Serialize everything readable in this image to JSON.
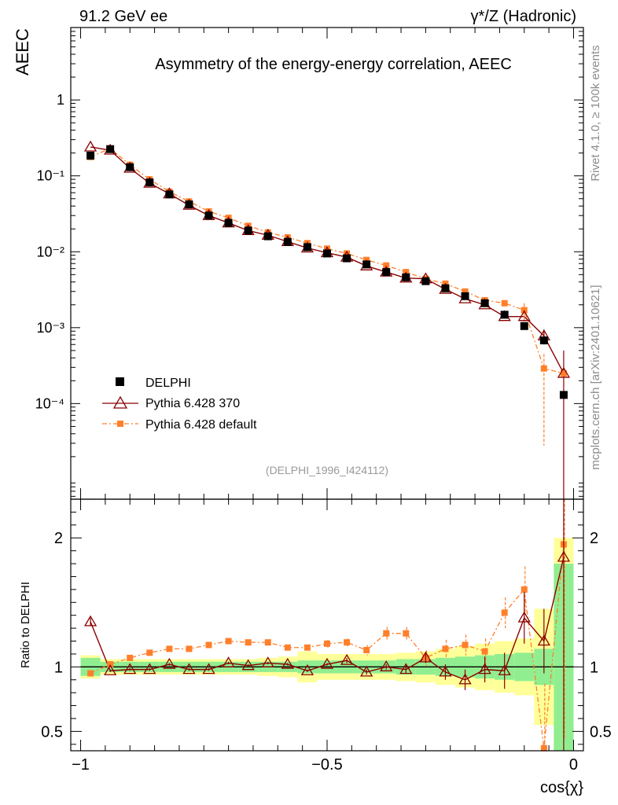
{
  "header": {
    "left": "91.2 GeV ee",
    "right": "γ*/Z (Hadronic)"
  },
  "side_labels": {
    "rivet": "Rivet 4.1.0, ≥ 100k events",
    "mcplots": "mcplots.cern.ch [arXiv:2401.10621]"
  },
  "colors": {
    "data": "#000000",
    "pythia370": "#8b0000",
    "pythiadefault": "#ff7f2a",
    "band_green": "#90ee90",
    "band_yellow": "#ffff99"
  },
  "chart_data": [
    {
      "type": "line",
      "title": "Asymmetry of the energy-energy correlation, AEEC",
      "ylabel": "AEEC",
      "xlabel": "cos{χ}",
      "yscale": "log",
      "xlim": [
        -1.02,
        0.02
      ],
      "ylim": [
        5.5e-06,
        9
      ],
      "analysis_tag": "(DELPHI_1996_I424112)",
      "y_ticks": [
        {
          "v": 1,
          "label": "1"
        },
        {
          "v": 0.1,
          "label": "10⁻¹"
        },
        {
          "v": 0.01,
          "label": "10⁻²"
        },
        {
          "v": 0.001,
          "label": "10⁻³"
        },
        {
          "v": 0.0001,
          "label": "10⁻⁴"
        }
      ],
      "legend": [
        "DELPHI",
        "Pythia 6.428 370",
        "Pythia 6.428 default"
      ],
      "x": [
        -0.98,
        -0.94,
        -0.9,
        -0.86,
        -0.82,
        -0.78,
        -0.74,
        -0.7,
        -0.66,
        -0.62,
        -0.58,
        -0.54,
        -0.5,
        -0.46,
        -0.42,
        -0.38,
        -0.34,
        -0.3,
        -0.26,
        -0.22,
        -0.18,
        -0.14,
        -0.1,
        -0.06,
        -0.02
      ],
      "series": [
        {
          "name": "DELPHI",
          "values": [
            0.185,
            0.225,
            0.13,
            0.082,
            0.057,
            0.042,
            0.03,
            0.024,
            0.019,
            0.016,
            0.0135,
            0.0115,
            0.0095,
            0.0082,
            0.0068,
            0.0054,
            0.0046,
            0.0041,
            0.0033,
            0.0026,
            0.0021,
            0.00148,
            0.00105,
            0.00068,
            0.00013
          ]
        },
        {
          "name": "Pythia 6.428 370",
          "values": [
            0.24,
            0.218,
            0.126,
            0.08,
            0.058,
            0.041,
            0.03,
            0.024,
            0.019,
            0.0165,
            0.0136,
            0.0112,
            0.0097,
            0.0085,
            0.0065,
            0.0054,
            0.0045,
            0.0044,
            0.0032,
            0.0024,
            0.002,
            0.0014,
            0.0014,
            0.00078,
            0.00025
          ]
        },
        {
          "name": "Pythia 6.428 default",
          "values": [
            0.177,
            0.23,
            0.14,
            0.09,
            0.062,
            0.046,
            0.034,
            0.028,
            0.022,
            0.018,
            0.0155,
            0.013,
            0.011,
            0.0095,
            0.0078,
            0.0066,
            0.0054,
            0.0044,
            0.0038,
            0.003,
            0.0023,
            0.0021,
            0.0017,
            0.00029,
            0.00025
          ]
        }
      ]
    },
    {
      "type": "line",
      "ylabel": "Ratio to DELPHI",
      "xlabel": "cos{χ}",
      "xlim": [
        -1.02,
        0.02
      ],
      "ylim": [
        0.35,
        2.3
      ],
      "x_ticks": [
        {
          "v": -1,
          "label": "−1"
        },
        {
          "v": -0.5,
          "label": "−0.5"
        },
        {
          "v": 0,
          "label": "0"
        }
      ],
      "y_ticks": [
        {
          "v": 0.5,
          "label": "0.5"
        },
        {
          "v": 1,
          "label": "1"
        },
        {
          "v": 2,
          "label": "2"
        }
      ],
      "x": [
        -0.98,
        -0.94,
        -0.9,
        -0.86,
        -0.82,
        -0.78,
        -0.74,
        -0.7,
        -0.66,
        -0.62,
        -0.58,
        -0.54,
        -0.5,
        -0.46,
        -0.42,
        -0.38,
        -0.34,
        -0.3,
        -0.26,
        -0.22,
        -0.18,
        -0.14,
        -0.1,
        -0.06,
        -0.02
      ],
      "bands": {
        "green_halfwidth": [
          0.07,
          0.04,
          0.04,
          0.04,
          0.04,
          0.04,
          0.04,
          0.04,
          0.04,
          0.04,
          0.04,
          0.05,
          0.05,
          0.05,
          0.05,
          0.05,
          0.06,
          0.06,
          0.07,
          0.08,
          0.09,
          0.1,
          0.11,
          0.14,
          0.8
        ],
        "yellow_halfwidth": [
          0.09,
          0.06,
          0.06,
          0.06,
          0.06,
          0.06,
          0.06,
          0.06,
          0.06,
          0.07,
          0.08,
          0.12,
          0.1,
          0.1,
          0.1,
          0.1,
          0.11,
          0.12,
          0.14,
          0.16,
          0.18,
          0.2,
          0.22,
          0.45,
          1.0
        ]
      },
      "series": [
        {
          "name": "Pythia 6.428 370",
          "values": [
            1.35,
            0.97,
            0.98,
            0.98,
            1.02,
            0.98,
            0.98,
            1.03,
            1.01,
            1.03,
            1.02,
            0.97,
            1.02,
            1.05,
            0.96,
            1.0,
            0.98,
            1.07,
            0.96,
            0.9,
            0.98,
            0.97,
            1.38,
            1.2,
            1.85
          ],
          "err": [
            0.03,
            0.01,
            0.01,
            0.01,
            0.01,
            0.01,
            0.01,
            0.01,
            0.01,
            0.01,
            0.01,
            0.01,
            0.01,
            0.02,
            0.02,
            0.02,
            0.03,
            0.04,
            0.06,
            0.08,
            0.1,
            0.14,
            0.2,
            0.25,
            1.5
          ]
        },
        {
          "name": "Pythia 6.428 default",
          "values": [
            0.95,
            1.02,
            1.07,
            1.11,
            1.14,
            1.14,
            1.17,
            1.2,
            1.19,
            1.19,
            1.15,
            1.15,
            1.18,
            1.19,
            1.13,
            1.26,
            1.26,
            1.07,
            1.14,
            1.17,
            1.12,
            1.42,
            1.6,
            0.37,
            1.95
          ],
          "err": [
            0.02,
            0.01,
            0.01,
            0.01,
            0.01,
            0.01,
            0.01,
            0.01,
            0.01,
            0.01,
            0.02,
            0.02,
            0.03,
            0.03,
            0.04,
            0.05,
            0.05,
            0.06,
            0.07,
            0.08,
            0.1,
            0.12,
            0.18,
            0.5,
            1.5
          ]
        }
      ]
    }
  ]
}
